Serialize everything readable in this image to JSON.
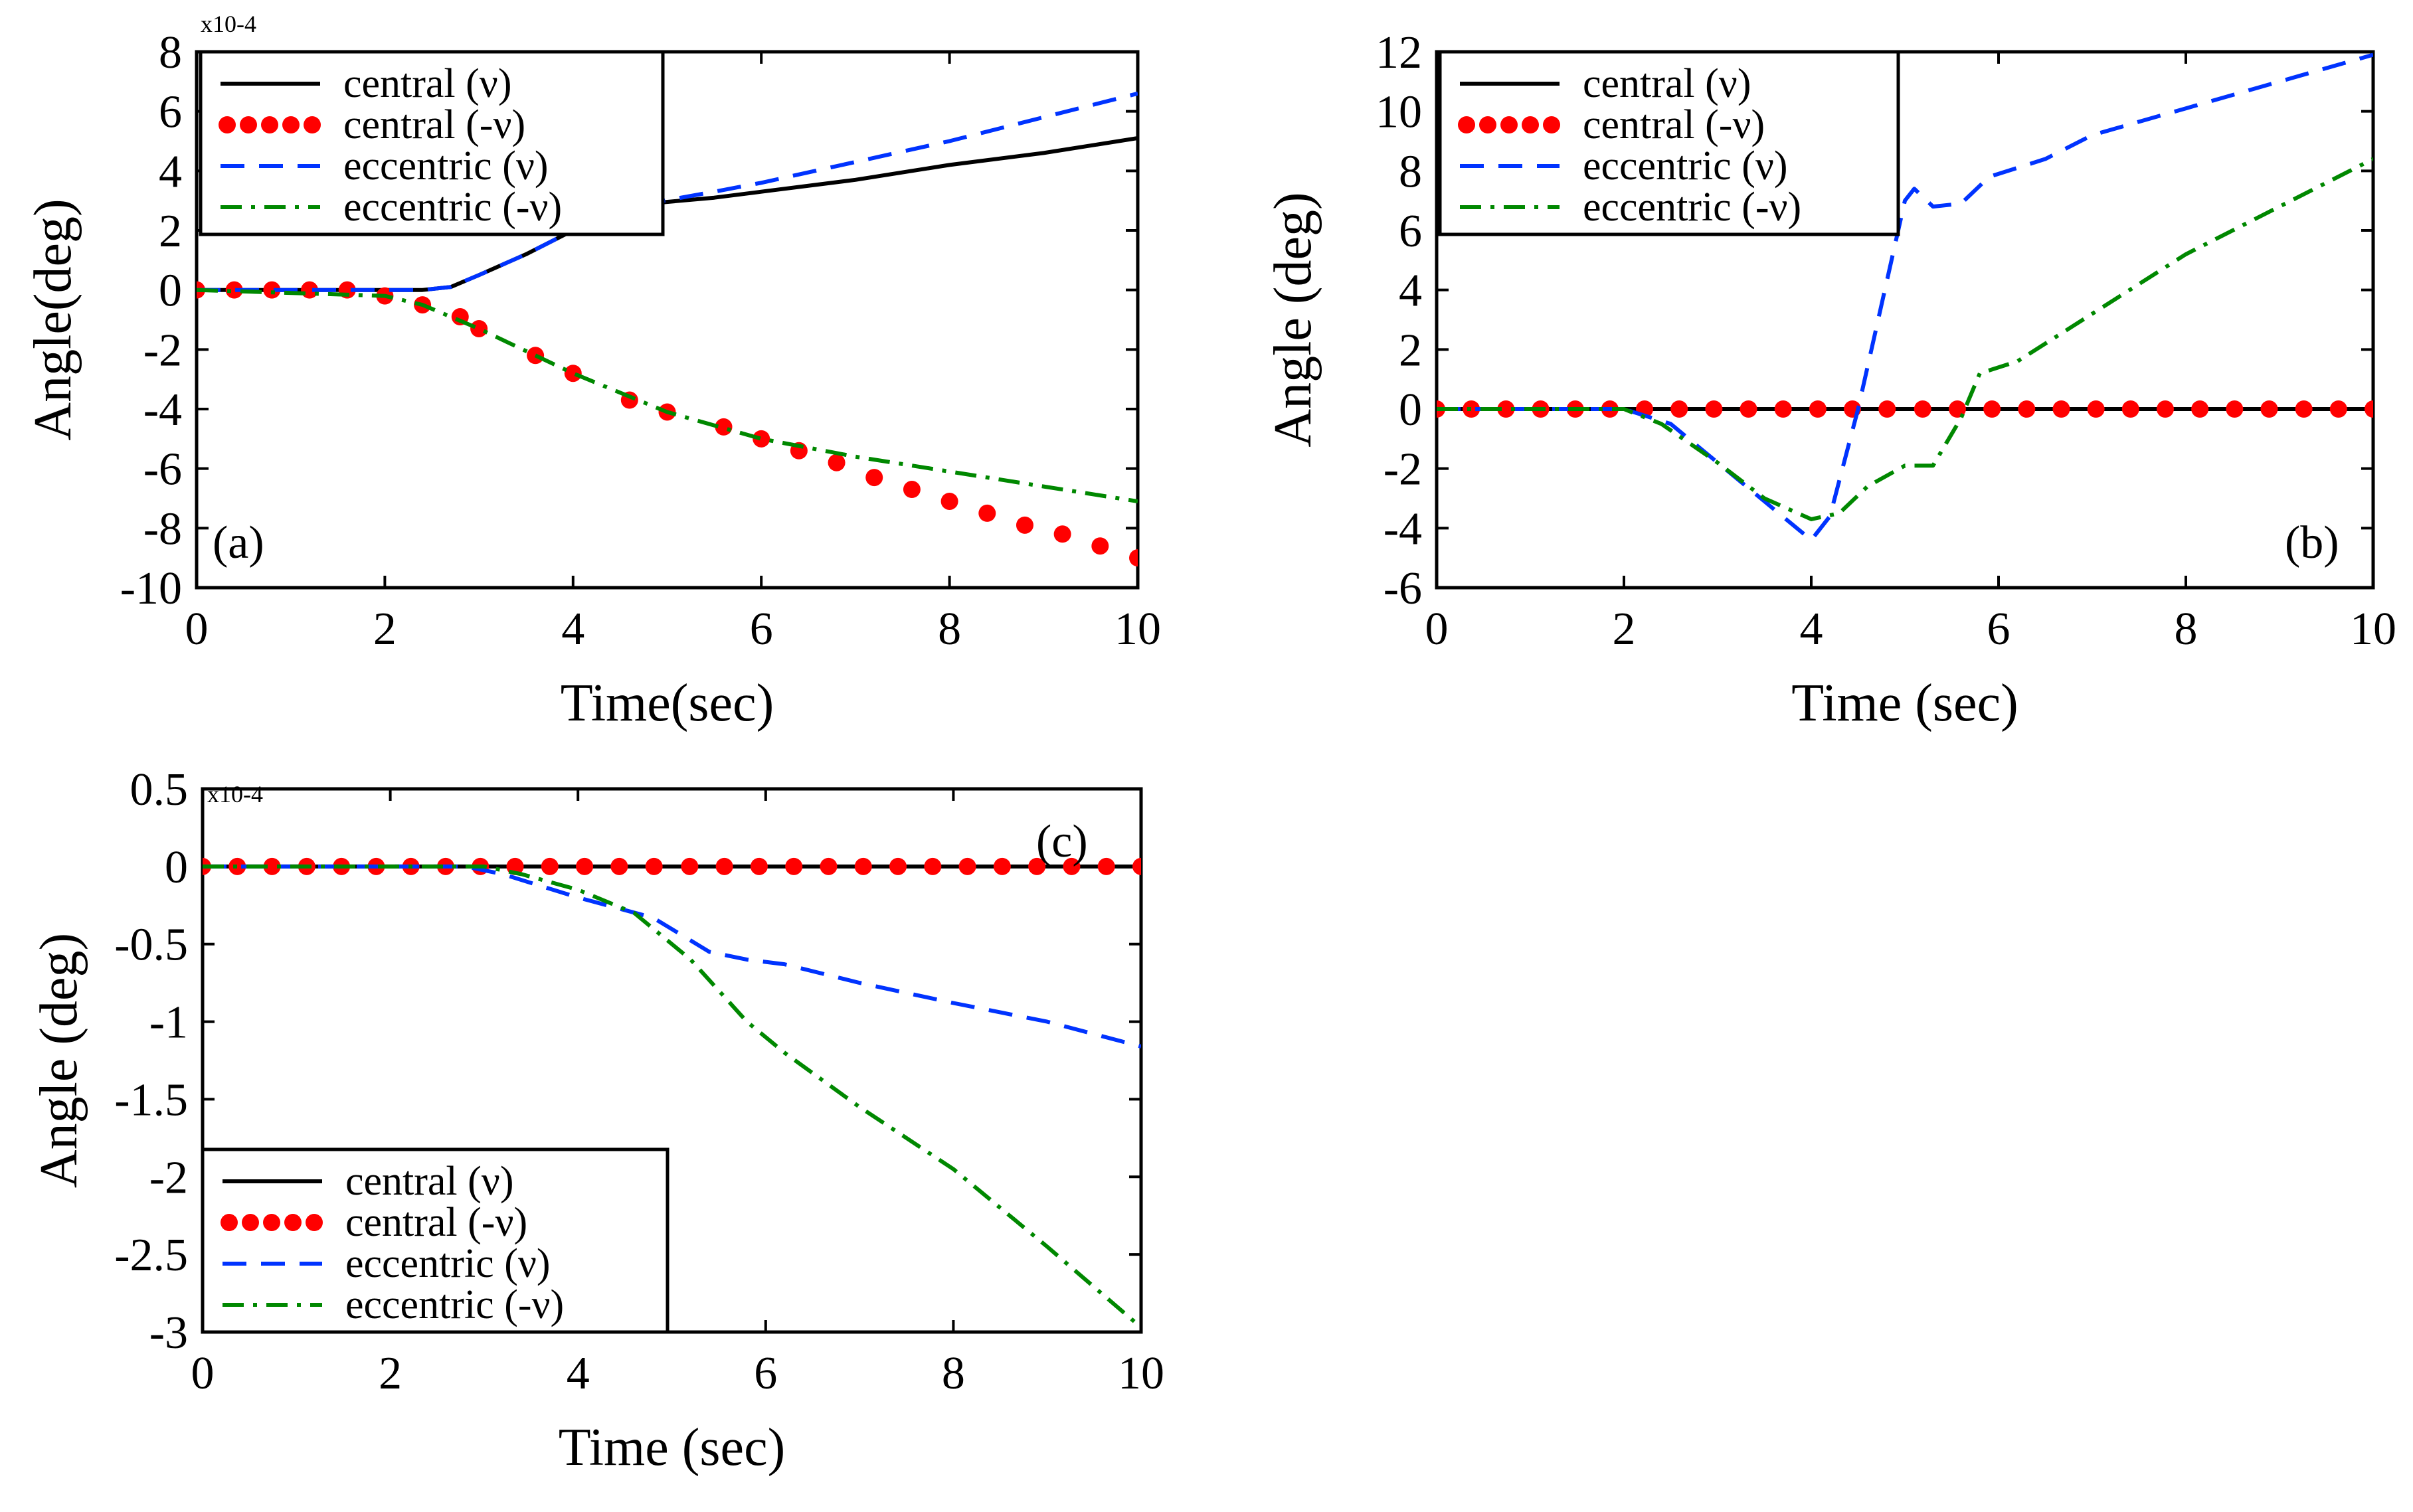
{
  "chart_data": [
    {
      "panel": "a",
      "type": "line",
      "panel_label": "(a)",
      "xlabel": "Time(sec)",
      "ylabel": "Angle(deg)",
      "exponent_label": "x10-4",
      "xlim": [
        0,
        10
      ],
      "ylim": [
        -10,
        8
      ],
      "xticks": [
        0,
        2,
        4,
        6,
        8,
        10
      ],
      "yticks": [
        -10,
        -8,
        -6,
        -4,
        -2,
        0,
        2,
        4,
        6,
        8
      ],
      "legend_position": "top-left",
      "legend": [
        "central (ν)",
        "central (-ν)",
        "eccentric (ν)",
        "eccentric (-ν)"
      ],
      "series": [
        {
          "name": "central (ν)",
          "style": "solid",
          "color": "#000000",
          "x": [
            0,
            2.4,
            2.7,
            3.0,
            3.5,
            4.0,
            4.5,
            4.8,
            5.5,
            6.0,
            7.0,
            8.0,
            9.0,
            10.0
          ],
          "y": [
            0,
            0,
            0.1,
            0.5,
            1.2,
            2.0,
            2.6,
            2.9,
            3.1,
            3.3,
            3.7,
            4.2,
            4.6,
            5.1
          ]
        },
        {
          "name": "central (-ν)",
          "style": "dots",
          "color": "#ff0000",
          "x": [
            0,
            0.4,
            0.8,
            1.2,
            1.6,
            2.0,
            2.4,
            2.8,
            3.0,
            3.6,
            4.0,
            4.6,
            5.0,
            5.6,
            6.0,
            6.4,
            6.8,
            7.2,
            7.6,
            8.0,
            8.4,
            8.8,
            9.2,
            9.6,
            10.0
          ],
          "y": [
            0,
            0,
            0,
            0,
            0,
            -0.2,
            -0.5,
            -0.9,
            -1.3,
            -2.2,
            -2.8,
            -3.7,
            -4.1,
            -4.6,
            -5.0,
            -5.4,
            -5.8,
            -6.3,
            -6.7,
            -7.1,
            -7.5,
            -7.9,
            -8.2,
            -8.6,
            -9.0
          ]
        },
        {
          "name": "eccentric (ν)",
          "style": "dashed",
          "color": "#0033ff",
          "x": [
            0,
            2.4,
            2.7,
            3.0,
            3.5,
            4.0,
            4.5,
            4.8,
            5.5,
            6.0,
            7.0,
            8.0,
            9.0,
            10.0
          ],
          "y": [
            0,
            0,
            0.1,
            0.5,
            1.2,
            2.0,
            2.6,
            2.9,
            3.3,
            3.6,
            4.3,
            5.0,
            5.8,
            6.6
          ]
        },
        {
          "name": "eccentric (-ν)",
          "style": "dashdot",
          "color": "#008800",
          "x": [
            0,
            2.0,
            2.4,
            3.0,
            4.0,
            5.0,
            6.0,
            7.0,
            8.0,
            9.0,
            10.0
          ],
          "y": [
            0,
            -0.2,
            -0.5,
            -1.3,
            -2.8,
            -4.1,
            -5.0,
            -5.6,
            -6.1,
            -6.6,
            -7.1
          ]
        }
      ]
    },
    {
      "panel": "b",
      "type": "line",
      "panel_label": "(b)",
      "xlabel": "Time (sec)",
      "ylabel": "Angle (deg)",
      "xlim": [
        0,
        10
      ],
      "ylim": [
        -6,
        12
      ],
      "xticks": [
        0,
        2,
        4,
        6,
        8,
        10
      ],
      "yticks": [
        -6,
        -4,
        -2,
        0,
        2,
        4,
        6,
        8,
        10,
        12
      ],
      "legend_position": "top-left",
      "legend": [
        "central (ν)",
        "central (-ν)",
        "eccentric (ν)",
        "eccentric (-ν)"
      ],
      "series": [
        {
          "name": "central (ν)",
          "style": "solid",
          "color": "#000000",
          "x": [
            0,
            10
          ],
          "y": [
            0,
            0
          ]
        },
        {
          "name": "central (-ν)",
          "style": "dots",
          "color": "#ff0000",
          "x": [
            0,
            0.37,
            0.74,
            1.11,
            1.48,
            1.85,
            2.22,
            2.59,
            2.96,
            3.33,
            3.7,
            4.07,
            4.44,
            4.81,
            5.19,
            5.56,
            5.93,
            6.3,
            6.67,
            7.04,
            7.41,
            7.78,
            8.15,
            8.52,
            8.89,
            9.26,
            9.63,
            10.0
          ],
          "y": [
            0,
            0,
            0,
            0,
            0,
            0,
            0,
            0,
            0,
            0,
            0,
            0,
            0,
            0,
            0,
            0,
            0,
            0,
            0,
            0,
            0,
            0,
            0,
            0,
            0,
            0,
            0,
            0
          ]
        },
        {
          "name": "eccentric (ν)",
          "style": "dashed",
          "color": "#0033ff",
          "x": [
            0,
            2.0,
            2.5,
            3.0,
            3.5,
            4.0,
            4.2,
            4.5,
            5.0,
            5.1,
            5.3,
            5.6,
            5.9,
            6.5,
            7.0,
            8.0,
            9.0,
            10.0
          ],
          "y": [
            0,
            0,
            -0.5,
            -1.8,
            -3.1,
            -4.4,
            -3.6,
            0,
            7.0,
            7.4,
            6.8,
            6.9,
            7.8,
            8.4,
            9.2,
            10.1,
            11.0,
            11.9
          ]
        },
        {
          "name": "eccentric (-ν)",
          "style": "dashdot",
          "color": "#008800",
          "x": [
            0,
            2.0,
            2.4,
            3.0,
            3.5,
            4.0,
            4.3,
            4.6,
            5.0,
            5.3,
            5.6,
            5.8,
            6.2,
            6.8,
            7.5,
            8.0,
            9.0,
            10.0
          ],
          "y": [
            0,
            0,
            -0.5,
            -1.8,
            -3.0,
            -3.7,
            -3.5,
            -2.6,
            -1.9,
            -1.9,
            -0.3,
            1.2,
            1.6,
            2.8,
            4.2,
            5.2,
            6.8,
            8.4
          ]
        }
      ]
    },
    {
      "panel": "c",
      "type": "line",
      "panel_label": "(c)",
      "xlabel": "Time (sec)",
      "ylabel": "Angle (deg)",
      "exponent_label": "x10-4",
      "xlim": [
        0,
        10
      ],
      "ylim": [
        -3,
        0.5
      ],
      "xticks": [
        0,
        2,
        4,
        6,
        8,
        10
      ],
      "yticks": [
        -3,
        -2.5,
        -2,
        -1.5,
        -1,
        -0.5,
        0,
        0.5
      ],
      "legend_position": "bottom-left",
      "legend": [
        "central (ν)",
        "central (-ν)",
        "eccentric (ν)",
        "eccentric (-ν)"
      ],
      "series": [
        {
          "name": "central (ν)",
          "style": "solid",
          "color": "#000000",
          "x": [
            0,
            10
          ],
          "y": [
            0,
            0
          ]
        },
        {
          "name": "central (-ν)",
          "style": "dots",
          "color": "#ff0000",
          "x": [
            0,
            0.37,
            0.74,
            1.11,
            1.48,
            1.85,
            2.22,
            2.59,
            2.96,
            3.33,
            3.7,
            4.07,
            4.44,
            4.81,
            5.19,
            5.56,
            5.93,
            6.3,
            6.67,
            7.04,
            7.41,
            7.78,
            8.15,
            8.52,
            8.89,
            9.26,
            9.63,
            10.0
          ],
          "y": [
            0,
            0,
            0,
            0,
            0,
            0,
            0,
            0,
            0,
            0,
            0,
            0,
            0,
            0,
            0,
            0,
            0,
            0,
            0,
            0,
            0,
            0,
            0,
            0,
            0,
            0,
            0,
            0
          ]
        },
        {
          "name": "eccentric (ν)",
          "style": "dashed",
          "color": "#0033ff",
          "x": [
            0,
            2.8,
            3.2,
            4.0,
            4.8,
            5.4,
            5.8,
            6.2,
            7.0,
            8.0,
            9.0,
            10.0
          ],
          "y": [
            0,
            0,
            -0.05,
            -0.2,
            -0.33,
            -0.55,
            -0.6,
            -0.63,
            -0.75,
            -0.88,
            -1.0,
            -1.16
          ]
        },
        {
          "name": "eccentric (-ν)",
          "style": "dashdot",
          "color": "#008800",
          "x": [
            0,
            3.0,
            3.4,
            4.0,
            4.6,
            5.2,
            5.5,
            5.8,
            6.2,
            7.0,
            8.0,
            9.0,
            10.0
          ],
          "y": [
            0,
            0,
            -0.05,
            -0.15,
            -0.3,
            -0.6,
            -0.8,
            -1.0,
            -1.2,
            -1.55,
            -1.95,
            -2.45,
            -2.97
          ]
        }
      ]
    }
  ]
}
